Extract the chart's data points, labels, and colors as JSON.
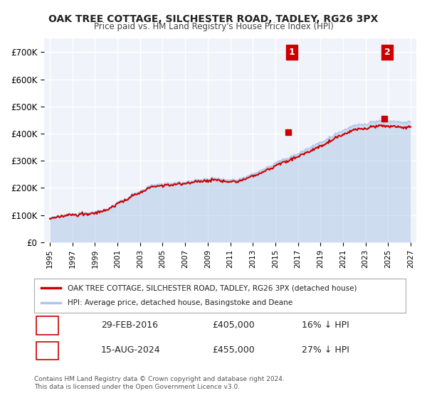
{
  "title": "OAK TREE COTTAGE, SILCHESTER ROAD, TADLEY, RG26 3PX",
  "subtitle": "Price paid vs. HM Land Registry's House Price Index (HPI)",
  "legend_line1": "OAK TREE COTTAGE, SILCHESTER ROAD, TADLEY, RG26 3PX (detached house)",
  "legend_line2": "HPI: Average price, detached house, Basingstoke and Deane",
  "annotation1_label": "1",
  "annotation1_date": "29-FEB-2016",
  "annotation1_price": "£405,000",
  "annotation1_hpi": "16% ↓ HPI",
  "annotation2_label": "2",
  "annotation2_date": "15-AUG-2024",
  "annotation2_price": "£455,000",
  "annotation2_hpi": "27% ↓ HPI",
  "footer": "Contains HM Land Registry data © Crown copyright and database right 2024.\nThis data is licensed under the Open Government Licence v3.0.",
  "hpi_color": "#aec6e8",
  "sale_color": "#cc0000",
  "sale_marker_color": "#cc0000",
  "annotation_box_color": "#cc0000",
  "background_color": "#ffffff",
  "plot_bg_color": "#f0f4fa",
  "grid_color": "#ffffff",
  "ylim": [
    0,
    750000
  ],
  "yticks": [
    0,
    100000,
    200000,
    300000,
    400000,
    500000,
    600000,
    700000
  ],
  "year_start": 1995,
  "year_end": 2027,
  "sale1_year": 2016.17,
  "sale1_price": 405000,
  "sale2_year": 2024.63,
  "sale2_price": 455000
}
